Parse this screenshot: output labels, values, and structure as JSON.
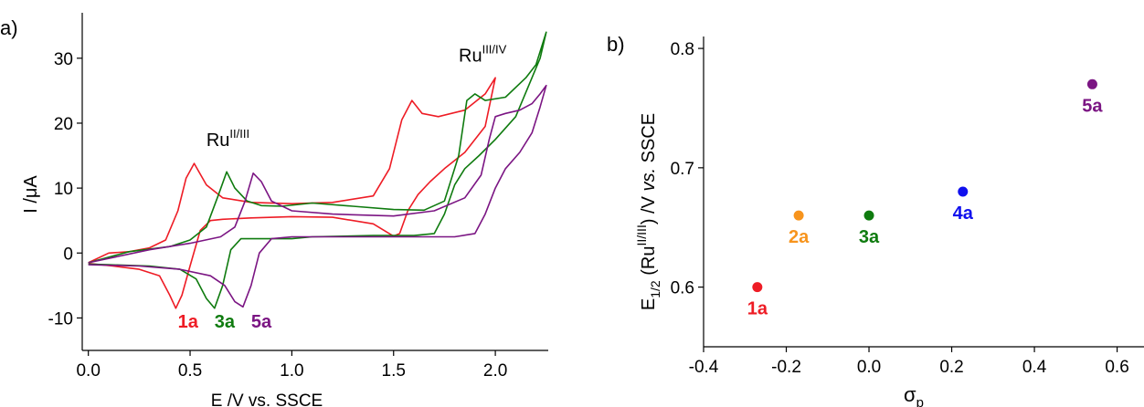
{
  "figure": {
    "panels": [
      {
        "panel_label": "a)",
        "chart_data": {
          "type": "line",
          "title": "",
          "xlabel": "E /V vs. SSCE",
          "ylabel_prefix": "I /",
          "ylabel_unit": "μA",
          "xlim": [
            -0.03,
            2.26
          ],
          "ylim": [
            -15,
            37
          ],
          "xticks": [
            0.0,
            0.5,
            1.0,
            1.5,
            2.0
          ],
          "xtick_labels": [
            "0.0",
            "0.5",
            "1.0",
            "1.5",
            "2.0"
          ],
          "yticks": [
            -10,
            0,
            10,
            20,
            30
          ],
          "ytick_labels": [
            "-10",
            "0",
            "10",
            "20",
            "30"
          ],
          "grid": false,
          "series": [
            {
              "name": "1a",
              "color": "#ee1c25",
              "x": [
                0.0,
                0.1,
                0.2,
                0.3,
                0.38,
                0.44,
                0.48,
                0.52,
                0.58,
                0.66,
                0.8,
                1.0,
                1.2,
                1.4,
                1.48,
                1.54,
                1.59,
                1.64,
                1.72,
                1.85,
                1.95,
                2.0,
                1.95,
                1.85,
                1.75,
                1.68,
                1.62,
                1.57,
                1.53,
                1.5,
                1.4,
                1.2,
                1.0,
                0.8,
                0.66,
                0.6,
                0.55,
                0.5,
                0.46,
                0.43,
                0.4,
                0.35,
                0.25,
                0.12,
                0.0
              ],
              "y": [
                -1.5,
                0.0,
                0.2,
                0.8,
                2.0,
                6.5,
                11.5,
                13.8,
                10.5,
                8.5,
                7.8,
                7.6,
                7.8,
                8.8,
                13.0,
                20.5,
                23.5,
                21.5,
                21.0,
                22.0,
                24.5,
                27.0,
                19.5,
                15.5,
                13.0,
                11.0,
                9.0,
                6.5,
                3.0,
                2.6,
                4.5,
                5.5,
                5.6,
                5.4,
                5.2,
                5.0,
                3.5,
                -2.0,
                -6.5,
                -8.5,
                -6.5,
                -3.5,
                -2.5,
                -2.0,
                -1.6
              ]
            },
            {
              "name": "3a",
              "color": "#0f7b0f",
              "x": [
                0.0,
                0.2,
                0.4,
                0.5,
                0.58,
                0.64,
                0.68,
                0.72,
                0.78,
                0.85,
                0.95,
                1.1,
                1.3,
                1.5,
                1.65,
                1.75,
                1.82,
                1.86,
                1.9,
                1.95,
                2.05,
                2.15,
                2.2,
                2.25,
                2.22,
                2.18,
                2.1,
                2.0,
                1.92,
                1.85,
                1.8,
                1.75,
                1.7,
                1.6,
                1.4,
                1.1,
                1.0,
                0.85,
                0.75,
                0.7,
                0.66,
                0.62,
                0.58,
                0.53,
                0.45,
                0.3,
                0.1,
                0.0
              ],
              "y": [
                -1.5,
                0.2,
                1.0,
                2.0,
                4.0,
                9.0,
                12.5,
                10.0,
                8.0,
                7.3,
                7.2,
                7.7,
                7.2,
                6.7,
                6.6,
                8.0,
                15.0,
                23.5,
                24.5,
                23.5,
                24.0,
                27.0,
                29.0,
                34.0,
                30.0,
                27.0,
                21.0,
                17.5,
                15.0,
                13.0,
                10.5,
                6.0,
                3.0,
                2.7,
                2.7,
                2.5,
                2.2,
                2.2,
                2.2,
                0.5,
                -5.0,
                -8.5,
                -7.0,
                -4.0,
                -2.5,
                -2.0,
                -1.8,
                -1.7
              ]
            },
            {
              "name": "5a",
              "color": "#7b1583",
              "x": [
                0.0,
                0.3,
                0.5,
                0.65,
                0.72,
                0.77,
                0.81,
                0.85,
                0.9,
                1.0,
                1.2,
                1.5,
                1.7,
                1.85,
                1.93,
                1.97,
                2.0,
                2.05,
                2.12,
                2.18,
                2.22,
                2.25,
                2.22,
                2.18,
                2.12,
                2.05,
                2.0,
                1.95,
                1.9,
                1.8,
                1.6,
                1.3,
                1.0,
                0.9,
                0.84,
                0.8,
                0.76,
                0.72,
                0.67,
                0.6,
                0.45,
                0.25,
                0.0
              ],
              "y": [
                -1.5,
                0.5,
                1.5,
                2.5,
                4.0,
                8.0,
                12.3,
                11.0,
                8.0,
                6.5,
                6.0,
                5.7,
                6.5,
                8.5,
                12.0,
                17.5,
                21.0,
                21.5,
                22.0,
                23.0,
                24.5,
                25.8,
                22.5,
                18.5,
                15.5,
                13.0,
                10.0,
                6.0,
                3.0,
                2.5,
                2.5,
                2.5,
                2.5,
                2.2,
                0.0,
                -5.0,
                -8.3,
                -7.5,
                -5.0,
                -3.5,
                -2.5,
                -2.0,
                -1.8
              ]
            }
          ],
          "annotations": [
            {
              "text": "1a",
              "x": 0.44,
              "y": -11.5,
              "color": "#ee1c25",
              "bold": true
            },
            {
              "text": "3a",
              "x": 0.62,
              "y": -11.5,
              "color": "#0f7b0f",
              "bold": true
            },
            {
              "text": "5a",
              "x": 0.8,
              "y": -11.5,
              "color": "#7b1583",
              "bold": true
            },
            {
              "text": "Ru",
              "sup": "II/III",
              "x": 0.58,
              "y": 16.5,
              "color": "#000000",
              "bold": false
            },
            {
              "text": "Ru",
              "sup": "III/IV",
              "x": 1.82,
              "y": 29.5,
              "color": "#000000",
              "bold": false
            }
          ]
        }
      },
      {
        "panel_label": "b)",
        "chart_data": {
          "type": "scatter",
          "title": "",
          "xlabel_main": "σ",
          "xlabel_sub": "p",
          "ylabel_parts": [
            {
              "text": "E",
              "style": "normal"
            },
            {
              "text": "1/2",
              "style": "sub"
            },
            {
              "text": " (Ru",
              "style": "normal"
            },
            {
              "text": "II/III",
              "style": "sup"
            },
            {
              "text": ")  /V ",
              "style": "normal"
            },
            {
              "text": "vs.",
              "style": "italic"
            },
            {
              "text": " SSCE",
              "style": "normal"
            }
          ],
          "xlim": [
            -0.4,
            0.665
          ],
          "ylim": [
            0.55,
            0.81
          ],
          "xticks": [
            -0.4,
            -0.2,
            0.0,
            0.2,
            0.4,
            0.6
          ],
          "xtick_labels": [
            "-0.4",
            "-0.2",
            "0.0",
            "0.2",
            "0.4",
            "0.6"
          ],
          "yticks": [
            0.6,
            0.7,
            0.8
          ],
          "ytick_labels": [
            "0.6",
            "0.7",
            "0.8"
          ],
          "grid": false,
          "points": [
            {
              "label": "1a",
              "x": -0.27,
              "y": 0.6,
              "color": "#ee1c25"
            },
            {
              "label": "2a",
              "x": -0.17,
              "y": 0.66,
              "color": "#f7941d"
            },
            {
              "label": "3a",
              "x": 0.0,
              "y": 0.66,
              "color": "#0f7b0f"
            },
            {
              "label": "4a",
              "x": 0.227,
              "y": 0.68,
              "color": "#1010ee"
            },
            {
              "label": "5a",
              "x": 0.54,
              "y": 0.77,
              "color": "#7b1583"
            }
          ]
        }
      }
    ]
  }
}
